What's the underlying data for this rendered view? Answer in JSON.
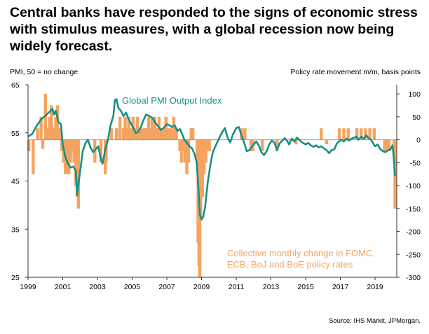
{
  "headline": "Central banks have responded to the signs of economic stress with stimulus measures, with a global recession now being widely forecast.",
  "source": "Source: IHS Markit, JPMorgan.",
  "chart_data": {
    "type": "bar",
    "left_axis": {
      "label": "PMI, 50 = no change",
      "ylim": [
        25,
        65
      ],
      "ticks": [
        25,
        35,
        45,
        55,
        65
      ]
    },
    "right_axis": {
      "label": "Policy rate movement m/m, basis points",
      "ylim": [
        -300,
        120
      ],
      "ticks": [
        -300,
        -250,
        -200,
        -150,
        -100,
        -50,
        0,
        50,
        100
      ]
    },
    "x_ticks": [
      "1999",
      "2001",
      "2003",
      "2005",
      "2007",
      "2009",
      "2011",
      "2013",
      "2015",
      "2017",
      "2019"
    ],
    "xlim": [
      1999.0,
      2020.25
    ],
    "grid": false,
    "colors": {
      "pmi": "#1a8f84",
      "rates": "#f4a460",
      "axis": "#333333"
    },
    "series": [
      {
        "name": "Global PMI Output Index",
        "axis": "left",
        "type": "line",
        "points": [
          [
            1999.0,
            54.2
          ],
          [
            1999.25,
            54.8
          ],
          [
            1999.5,
            56.5
          ],
          [
            1999.75,
            57.8
          ],
          [
            2000.0,
            58.6
          ],
          [
            2000.25,
            59.4
          ],
          [
            2000.4,
            60.0
          ],
          [
            2000.5,
            58.8
          ],
          [
            2000.6,
            59.6
          ],
          [
            2000.75,
            57.2
          ],
          [
            2000.9,
            56.8
          ],
          [
            2001.0,
            52.5
          ],
          [
            2001.15,
            50.0
          ],
          [
            2001.3,
            48.6
          ],
          [
            2001.45,
            47.8
          ],
          [
            2001.6,
            48.0
          ],
          [
            2001.75,
            47.2
          ],
          [
            2001.83,
            42.0
          ],
          [
            2001.92,
            44.8
          ],
          [
            2002.0,
            47.0
          ],
          [
            2002.15,
            51.2
          ],
          [
            2002.3,
            52.8
          ],
          [
            2002.45,
            53.6
          ],
          [
            2002.6,
            52.0
          ],
          [
            2002.75,
            51.0
          ],
          [
            2002.9,
            51.6
          ],
          [
            2003.05,
            52.2
          ],
          [
            2003.2,
            49.5
          ],
          [
            2003.3,
            48.6
          ],
          [
            2003.45,
            51.6
          ],
          [
            2003.6,
            53.5
          ],
          [
            2003.75,
            56.5
          ],
          [
            2003.92,
            58.6
          ],
          [
            2004.0,
            61.8
          ],
          [
            2004.1,
            62.0
          ],
          [
            2004.2,
            60.2
          ],
          [
            2004.35,
            59.6
          ],
          [
            2004.5,
            58.5
          ],
          [
            2004.65,
            59.2
          ],
          [
            2004.8,
            57.8
          ],
          [
            2005.0,
            56.5
          ],
          [
            2005.2,
            55.0
          ],
          [
            2005.35,
            55.2
          ],
          [
            2005.5,
            56.2
          ],
          [
            2005.65,
            57.6
          ],
          [
            2005.8,
            58.8
          ],
          [
            2006.0,
            58.5
          ],
          [
            2006.2,
            58.0
          ],
          [
            2006.35,
            57.0
          ],
          [
            2006.5,
            56.4
          ],
          [
            2006.65,
            55.6
          ],
          [
            2006.8,
            56.0
          ],
          [
            2007.0,
            56.8
          ],
          [
            2007.15,
            56.6
          ],
          [
            2007.3,
            56.2
          ],
          [
            2007.45,
            56.6
          ],
          [
            2007.6,
            55.4
          ],
          [
            2007.75,
            55.8
          ],
          [
            2007.9,
            54.6
          ],
          [
            2008.0,
            53.6
          ],
          [
            2008.15,
            53.0
          ],
          [
            2008.3,
            52.2
          ],
          [
            2008.45,
            51.8
          ],
          [
            2008.6,
            50.6
          ],
          [
            2008.72,
            48.8
          ],
          [
            2008.83,
            43.0
          ],
          [
            2008.9,
            38.0
          ],
          [
            2009.0,
            37.0
          ],
          [
            2009.1,
            37.6
          ],
          [
            2009.2,
            39.5
          ],
          [
            2009.35,
            44.5
          ],
          [
            2009.5,
            48.2
          ],
          [
            2009.65,
            51.0
          ],
          [
            2009.8,
            52.2
          ],
          [
            2010.0,
            53.8
          ],
          [
            2010.2,
            55.2
          ],
          [
            2010.35,
            56.0
          ],
          [
            2010.5,
            54.0
          ],
          [
            2010.65,
            53.0
          ],
          [
            2010.8,
            54.6
          ],
          [
            2011.0,
            56.0
          ],
          [
            2011.15,
            56.2
          ],
          [
            2011.3,
            54.5
          ],
          [
            2011.45,
            53.0
          ],
          [
            2011.6,
            51.2
          ],
          [
            2011.75,
            51.4
          ],
          [
            2012.0,
            52.6
          ],
          [
            2012.15,
            53.2
          ],
          [
            2012.3,
            52.4
          ],
          [
            2012.45,
            51.0
          ],
          [
            2012.6,
            50.4
          ],
          [
            2012.75,
            51.2
          ],
          [
            2012.9,
            52.6
          ],
          [
            2013.05,
            53.4
          ],
          [
            2013.2,
            53.0
          ],
          [
            2013.35,
            51.4
          ],
          [
            2013.5,
            52.8
          ],
          [
            2013.65,
            53.4
          ],
          [
            2013.8,
            53.9
          ],
          [
            2013.92,
            53.4
          ],
          [
            2014.05,
            52.6
          ],
          [
            2014.2,
            53.8
          ],
          [
            2014.35,
            53.2
          ],
          [
            2014.5,
            54.0
          ],
          [
            2014.65,
            53.5
          ],
          [
            2014.8,
            53.0
          ],
          [
            2015.0,
            52.6
          ],
          [
            2015.15,
            52.9
          ],
          [
            2015.3,
            52.4
          ],
          [
            2015.45,
            52.1
          ],
          [
            2015.6,
            52.4
          ],
          [
            2015.75,
            52.0
          ],
          [
            2015.9,
            52.2
          ],
          [
            2016.05,
            51.8
          ],
          [
            2016.2,
            51.4
          ],
          [
            2016.35,
            50.8
          ],
          [
            2016.5,
            51.4
          ],
          [
            2016.65,
            51.6
          ],
          [
            2016.8,
            52.8
          ],
          [
            2016.92,
            53.2
          ],
          [
            2017.05,
            53.6
          ],
          [
            2017.2,
            53.2
          ],
          [
            2017.35,
            53.8
          ],
          [
            2017.5,
            53.4
          ],
          [
            2017.65,
            53.8
          ],
          [
            2017.8,
            54.0
          ],
          [
            2017.92,
            54.2
          ],
          [
            2018.05,
            53.6
          ],
          [
            2018.2,
            54.2
          ],
          [
            2018.35,
            53.8
          ],
          [
            2018.5,
            54.5
          ],
          [
            2018.6,
            54.0
          ],
          [
            2018.75,
            53.6
          ],
          [
            2018.9,
            52.8
          ],
          [
            2019.0,
            52.2
          ],
          [
            2019.15,
            52.6
          ],
          [
            2019.3,
            51.6
          ],
          [
            2019.45,
            51.2
          ],
          [
            2019.6,
            51.0
          ],
          [
            2019.75,
            51.4
          ],
          [
            2019.9,
            51.6
          ],
          [
            2020.0,
            52.4
          ],
          [
            2020.05,
            51.0
          ],
          [
            2020.1,
            48.8
          ],
          [
            2020.15,
            46.0
          ]
        ]
      },
      {
        "name": "Collective monthly change in FOMC, ECB, BoJ and BoE policy rates",
        "axis": "right",
        "type": "bar",
        "points": [
          [
            1999.05,
            -25
          ],
          [
            1999.3,
            -75
          ],
          [
            1999.55,
            25
          ],
          [
            1999.75,
            50
          ],
          [
            1999.85,
            -20
          ],
          [
            2000.0,
            100
          ],
          [
            2000.1,
            25
          ],
          [
            2000.25,
            50
          ],
          [
            2000.35,
            75
          ],
          [
            2000.45,
            25
          ],
          [
            2000.6,
            50
          ],
          [
            2000.7,
            75
          ],
          [
            2000.85,
            25
          ],
          [
            2000.95,
            -25
          ],
          [
            2001.05,
            -50
          ],
          [
            2001.15,
            -75
          ],
          [
            2001.25,
            -75
          ],
          [
            2001.35,
            -75
          ],
          [
            2001.45,
            -50
          ],
          [
            2001.55,
            -25
          ],
          [
            2001.65,
            -50
          ],
          [
            2001.75,
            -100
          ],
          [
            2001.83,
            -125
          ],
          [
            2001.9,
            -150
          ],
          [
            2002.85,
            -50
          ],
          [
            2003.2,
            -50
          ],
          [
            2003.45,
            -75
          ],
          [
            2003.5,
            -50
          ],
          [
            2003.8,
            25
          ],
          [
            2004.1,
            25
          ],
          [
            2004.3,
            50
          ],
          [
            2004.5,
            25
          ],
          [
            2004.6,
            50
          ],
          [
            2004.7,
            25
          ],
          [
            2004.8,
            50
          ],
          [
            2004.9,
            25
          ],
          [
            2005.05,
            50
          ],
          [
            2005.15,
            25
          ],
          [
            2005.3,
            50
          ],
          [
            2005.4,
            25
          ],
          [
            2005.55,
            25
          ],
          [
            2005.7,
            25
          ],
          [
            2005.8,
            25
          ],
          [
            2005.95,
            50
          ],
          [
            2006.05,
            25
          ],
          [
            2006.15,
            50
          ],
          [
            2006.3,
            50
          ],
          [
            2006.45,
            25
          ],
          [
            2006.55,
            50
          ],
          [
            2006.7,
            25
          ],
          [
            2006.8,
            25
          ],
          [
            2006.95,
            50
          ],
          [
            2007.1,
            25
          ],
          [
            2007.25,
            25
          ],
          [
            2007.4,
            50
          ],
          [
            2007.55,
            25
          ],
          [
            2007.75,
            -25
          ],
          [
            2007.85,
            -50
          ],
          [
            2007.95,
            -25
          ],
          [
            2008.05,
            -50
          ],
          [
            2008.15,
            -75
          ],
          [
            2008.25,
            -50
          ],
          [
            2008.4,
            25
          ],
          [
            2008.5,
            25
          ],
          [
            2008.75,
            -50
          ],
          [
            2008.8,
            -225
          ],
          [
            2008.85,
            -275
          ],
          [
            2008.9,
            -300
          ],
          [
            2008.95,
            -175
          ],
          [
            2009.05,
            -125
          ],
          [
            2009.15,
            -75
          ],
          [
            2009.25,
            -50
          ],
          [
            2009.35,
            -25
          ],
          [
            2009.45,
            -25
          ],
          [
            2011.3,
            25
          ],
          [
            2011.5,
            25
          ],
          [
            2011.85,
            -25
          ],
          [
            2011.95,
            -25
          ],
          [
            2012.5,
            -25
          ],
          [
            2013.35,
            -25
          ],
          [
            2014.45,
            -10
          ],
          [
            2015.9,
            25
          ],
          [
            2016.2,
            -10
          ],
          [
            2016.95,
            25
          ],
          [
            2017.2,
            25
          ],
          [
            2017.45,
            25
          ],
          [
            2017.95,
            25
          ],
          [
            2018.2,
            25
          ],
          [
            2018.45,
            25
          ],
          [
            2018.7,
            25
          ],
          [
            2018.95,
            25
          ],
          [
            2019.55,
            -25
          ],
          [
            2019.7,
            -25
          ],
          [
            2019.8,
            -25
          ],
          [
            2020.1,
            -25
          ],
          [
            2020.15,
            -150
          ]
        ]
      }
    ],
    "annotations": [
      {
        "text": "Global PMI Output Index",
        "series": 0
      },
      {
        "lines": [
          "Collective monthly change in FOMC,",
          "ECB, BoJ and BoE policy rates"
        ],
        "series": 1
      }
    ]
  }
}
